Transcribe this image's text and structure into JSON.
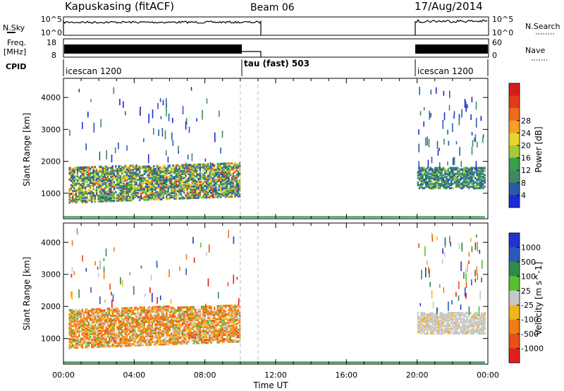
{
  "header": {
    "station": "Kapuskasing (fitACF)",
    "beam": "Beam 06",
    "date": "17/Aug/2014"
  },
  "top_panels": {
    "nsky_label": "N.Sky",
    "nsky_ticks": [
      "10^5",
      "10^0"
    ],
    "nsearch_label": "N.Search",
    "nsearch_ticks": [
      "10^5",
      "10^0"
    ],
    "freq_label": "Freq.",
    "freq_unit": "[MHz]",
    "freq_ticks": [
      "18",
      "8"
    ],
    "nave_label": "Nave",
    "nave_ticks": [
      "60",
      "0"
    ],
    "cpid_label": "CPID",
    "cpid_segments": [
      "icescan 1200",
      "tau (fast) 503",
      "icescan 1200"
    ]
  },
  "chart_data": [
    {
      "type": "heatmap",
      "title": "",
      "xlabel": "Time UT",
      "ylabel": "Slant Range [km]",
      "colorbar_label": "Power [dB]",
      "xlim": [
        0,
        24
      ],
      "ylim": [
        200,
        4600
      ],
      "x_ticks": [
        "00:00",
        "04:00",
        "08:00",
        "12:00",
        "16:00",
        "20:00",
        "00:00"
      ],
      "y_ticks": [
        1000,
        2000,
        3000,
        4000
      ],
      "colorbar_ticks": [
        "4",
        "8",
        "12",
        "16",
        "20",
        "24",
        "28"
      ],
      "colorbar_colors": [
        "#1c2bd6",
        "#2a5aa8",
        "#3f8a60",
        "#3aa04a",
        "#a4c93a",
        "#e9d52c",
        "#f3a024",
        "#ee6a1e",
        "#e23a1a",
        "#d81c1c"
      ],
      "gaps_hours": [
        [
          11.0,
          20.0
        ]
      ],
      "echo_bands": [
        {
          "t_start": 0.3,
          "t_end": 10.0,
          "range_low_km": 700,
          "range_high_km": 1800,
          "level": "medium-high"
        },
        {
          "t_start": 20.0,
          "t_end": 23.8,
          "range_low_km": 1150,
          "range_high_km": 1800,
          "level": "medium"
        }
      ]
    },
    {
      "type": "heatmap",
      "title": "",
      "xlabel": "Time UT",
      "ylabel": "Slant Range [km]",
      "colorbar_label": "Velocity [m s^-1]",
      "xlim": [
        0,
        24
      ],
      "ylim": [
        200,
        4600
      ],
      "x_ticks": [
        "00:00",
        "04:00",
        "08:00",
        "12:00",
        "16:00",
        "20:00",
        "00:00"
      ],
      "y_ticks": [
        1000,
        2000,
        3000,
        4000
      ],
      "colorbar_ticks": [
        "1000",
        "500",
        "100",
        "25",
        "-25",
        "-100",
        "-500",
        "-1000"
      ],
      "colorbar_colors": [
        "#2233cc",
        "#2a5ab8",
        "#2e8c4a",
        "#55c12e",
        "#c8c8c8",
        "#f2b41c",
        "#ef7d18",
        "#e65018",
        "#e01e1e"
      ],
      "gaps_hours": [
        [
          11.0,
          20.0
        ]
      ],
      "echo_bands": [
        {
          "t_start": 0.3,
          "t_end": 10.0,
          "range_low_km": 700,
          "range_high_km": 1900,
          "level": "negative velocity (orange)"
        },
        {
          "t_start": 20.0,
          "t_end": 23.8,
          "range_low_km": 1150,
          "range_high_km": 1800,
          "level": "near zero (grey)"
        }
      ]
    }
  ]
}
